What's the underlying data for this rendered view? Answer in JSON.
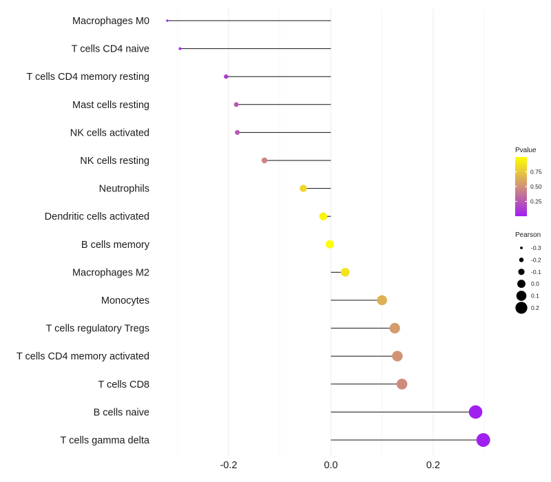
{
  "chart_data": {
    "type": "lollipop",
    "title": "",
    "xlabel": "",
    "ylabel": "",
    "xlim": [
      -0.34,
      0.32
    ],
    "x_ticks": [
      -0.2,
      0.0,
      0.2
    ],
    "x_tick_labels": [
      "-0.2",
      "0.0",
      "0.2"
    ],
    "grid": true,
    "categories": [
      "Macrophages M0",
      "T cells CD4 naive",
      "T cells CD4 memory resting",
      "Mast cells resting",
      "NK cells activated",
      "NK cells resting",
      "Neutrophils",
      "Dendritic cells activated",
      "B cells memory",
      "Macrophages M2",
      "Monocytes",
      "T cells regulatory  Tregs ",
      "T cells CD4 memory activated",
      "T cells CD8",
      "B cells naive",
      "T cells gamma delta"
    ],
    "pearson": [
      -0.32,
      -0.295,
      -0.205,
      -0.185,
      -0.183,
      -0.13,
      -0.054,
      -0.015,
      -0.002,
      0.028,
      0.1,
      0.125,
      0.13,
      0.139,
      0.283,
      0.298
    ],
    "pvalue": [
      0.01,
      0.02,
      0.12,
      0.25,
      0.25,
      0.45,
      0.82,
      0.95,
      0.99,
      0.88,
      0.65,
      0.55,
      0.52,
      0.48,
      0.005,
      0.004
    ],
    "legend": {
      "placement": "right",
      "color": {
        "title": "Pvalue",
        "ticks": [
          0.75,
          0.5,
          0.25
        ],
        "tick_labels": [
          "0.75",
          "0.50",
          "0.25"
        ],
        "low_color": "#a020f0",
        "high_color": "#ffff00",
        "range": [
          0.0,
          1.0
        ]
      },
      "size": {
        "title": "Pearson",
        "values": [
          -0.3,
          -0.2,
          -0.1,
          0.0,
          0.1,
          0.2
        ],
        "labels": [
          "-0.3",
          "-0.2",
          "-0.1",
          "0.0",
          "0.1",
          "0.2"
        ]
      }
    }
  }
}
